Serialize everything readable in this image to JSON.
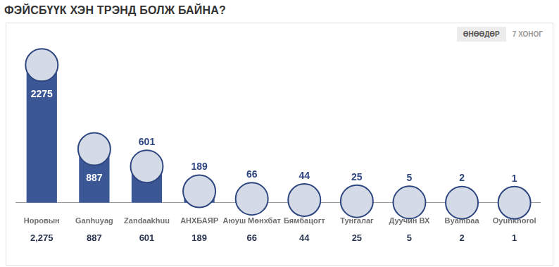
{
  "chart_data": {
    "type": "bar",
    "title": "ФЭЙСБҮҮК ХЭН ТРЭНД БОЛЖ БАЙНА?",
    "categories": [
      "Норовын",
      "Ganhuyag",
      "Zandaakhuu",
      "АНХБАЯР",
      "Аюуш Мөнхбат",
      "Бямбацогт",
      "Тунгалаг",
      "Дуучин ВХ",
      "Byambaa",
      "Oyunkhorol"
    ],
    "values": [
      2275,
      887,
      601,
      189,
      66,
      44,
      25,
      5,
      2,
      1
    ],
    "value_labels": [
      "2,275",
      "887",
      "601",
      "189",
      "66",
      "44",
      "25",
      "5",
      "2",
      "1"
    ],
    "color": "#3c5796",
    "data_labels": true,
    "tick_labels": "x",
    "grid": false
  },
  "tabs": [
    "ӨНӨӨДӨР",
    "7 ХОНОГ"
  ]
}
